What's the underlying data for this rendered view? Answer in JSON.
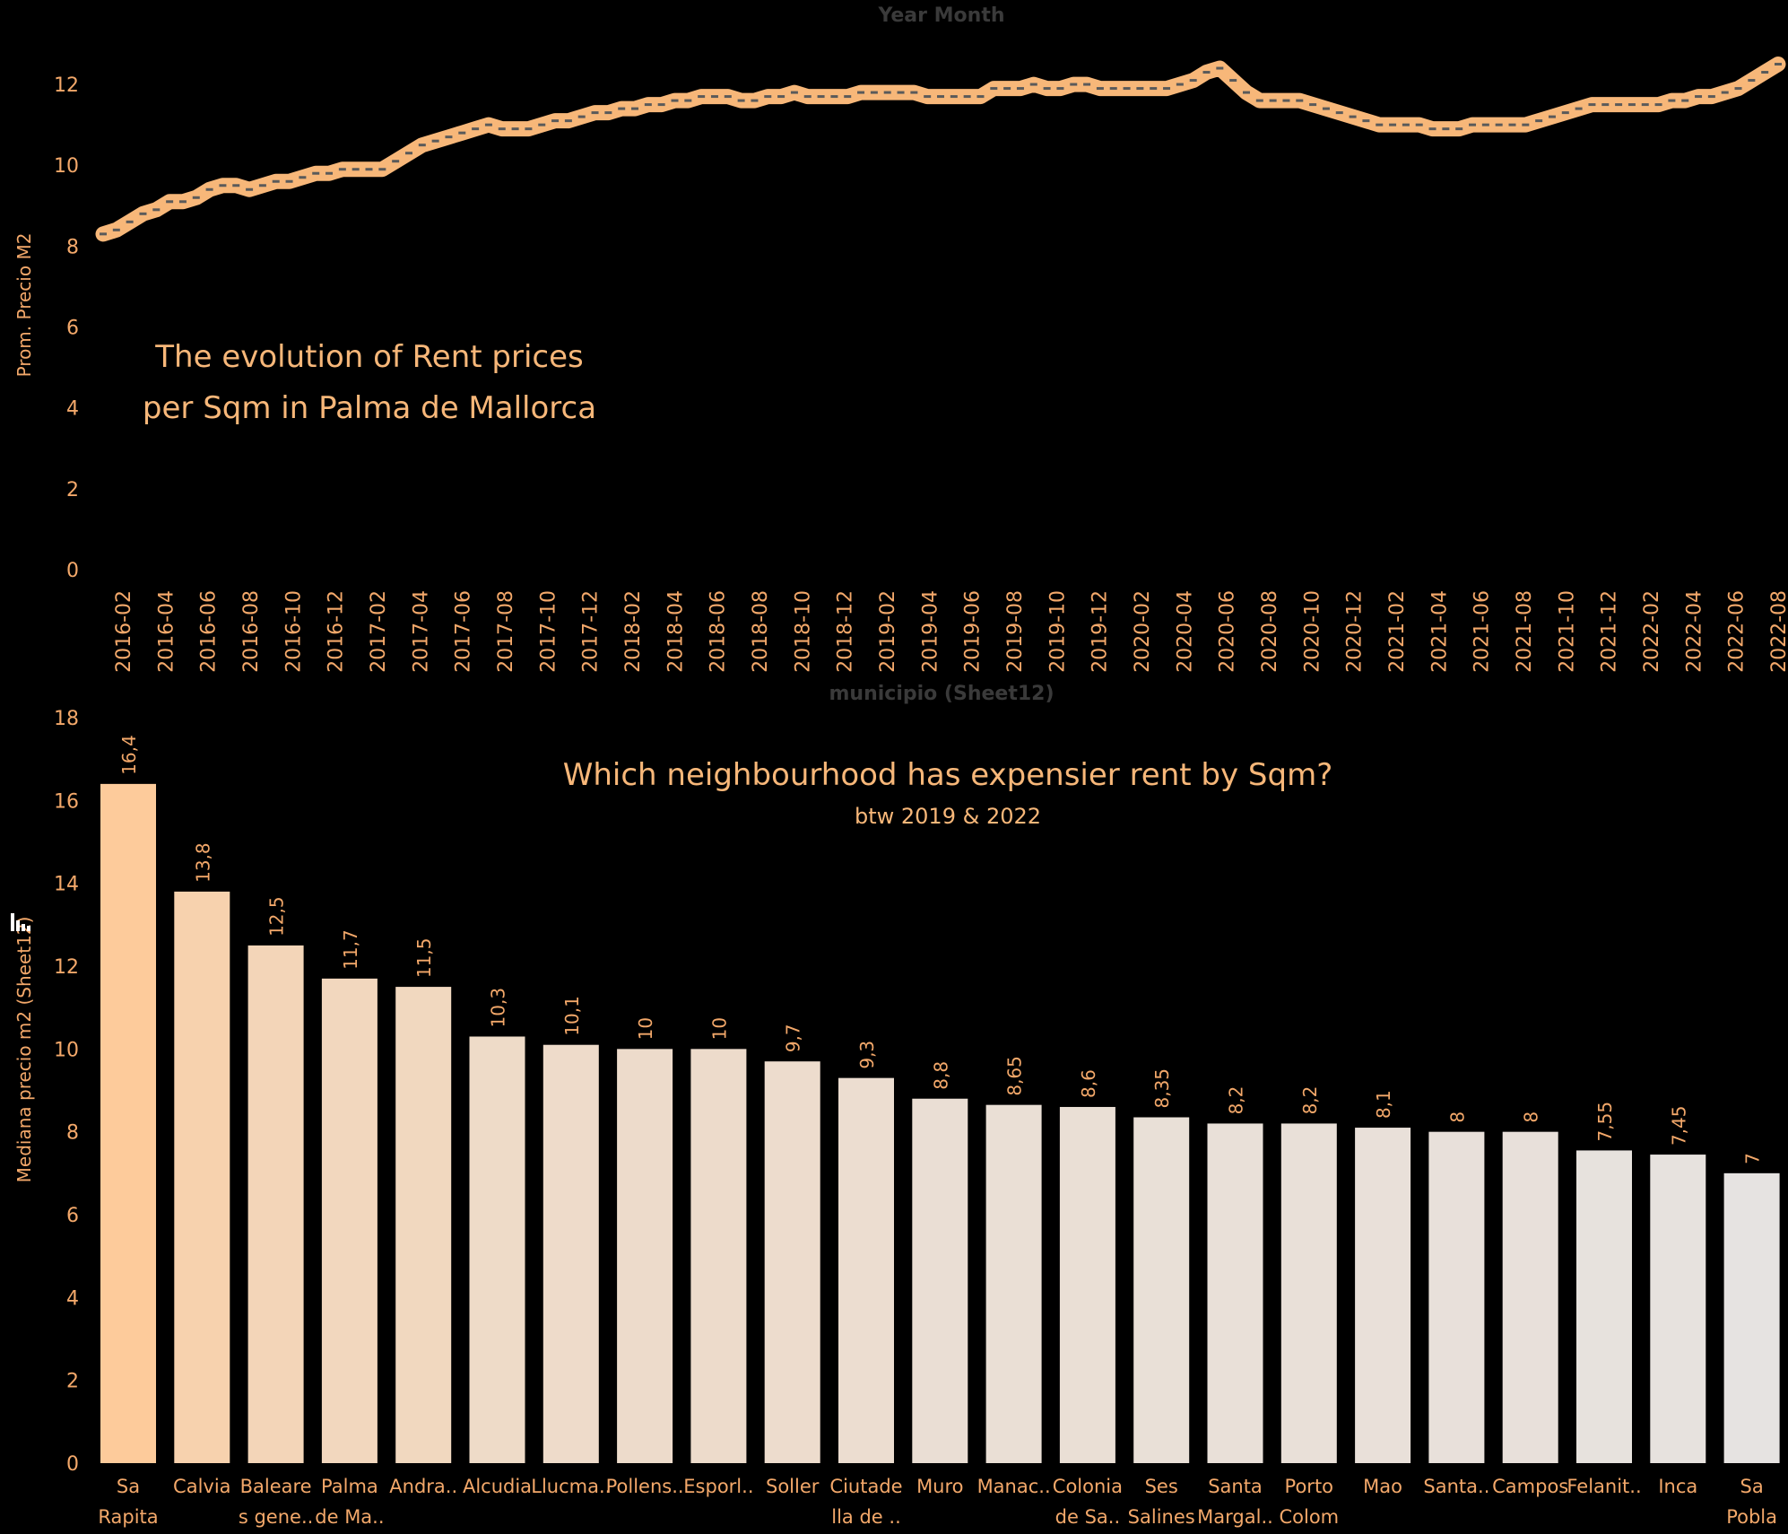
{
  "chart_data": [
    {
      "type": "line",
      "title": "The evolution of Rent prices",
      "subtitle": "per Sqm in Palma de Mallorca",
      "xlabel": "Year Month",
      "ylabel": "Prom. Precio M2",
      "ylim": [
        0,
        12.8
      ],
      "yticks": [
        0,
        2,
        4,
        6,
        8,
        10,
        12
      ],
      "grid": false,
      "line_color": "#f7b779",
      "x_tick_labels": [
        "2016-02",
        "2016-04",
        "2016-06",
        "2016-08",
        "2016-10",
        "2016-12",
        "2017-02",
        "2017-04",
        "2017-06",
        "2017-08",
        "2017-10",
        "2017-12",
        "2018-02",
        "2018-04",
        "2018-06",
        "2018-08",
        "2018-10",
        "2018-12",
        "2019-02",
        "2019-04",
        "2019-06",
        "2019-08",
        "2019-10",
        "2019-12",
        "2020-02",
        "2020-04",
        "2020-06",
        "2020-08",
        "2020-10",
        "2020-12",
        "2021-02",
        "2021-04",
        "2021-06",
        "2021-08",
        "2021-10",
        "2021-12",
        "2022-02",
        "2022-04",
        "2022-06",
        "2022-08"
      ],
      "series": [
        {
          "values": [
            8.3,
            8.4,
            8.6,
            8.8,
            8.9,
            9.1,
            9.1,
            9.2,
            9.4,
            9.5,
            9.5,
            9.4,
            9.5,
            9.6,
            9.6,
            9.7,
            9.8,
            9.8,
            9.9,
            9.9,
            9.9,
            9.9,
            10.1,
            10.3,
            10.5,
            10.6,
            10.7,
            10.8,
            10.9,
            11.0,
            10.9,
            10.9,
            10.9,
            11.0,
            11.1,
            11.1,
            11.2,
            11.3,
            11.3,
            11.4,
            11.4,
            11.5,
            11.5,
            11.6,
            11.6,
            11.7,
            11.7,
            11.7,
            11.6,
            11.6,
            11.7,
            11.7,
            11.8,
            11.7,
            11.7,
            11.7,
            11.7,
            11.8,
            11.8,
            11.8,
            11.8,
            11.8,
            11.7,
            11.7,
            11.7,
            11.7,
            11.7,
            11.9,
            11.9,
            11.9,
            12.0,
            11.9,
            11.9,
            12.0,
            12.0,
            11.9,
            11.9,
            11.9,
            11.9,
            11.9,
            11.9,
            12.0,
            12.1,
            12.3,
            12.4,
            12.1,
            11.8,
            11.6,
            11.6,
            11.6,
            11.6,
            11.5,
            11.4,
            11.3,
            11.2,
            11.1,
            11.0,
            11.0,
            11.0,
            11.0,
            10.9,
            10.9,
            10.9,
            11.0,
            11.0,
            11.0,
            11.0,
            11.0,
            11.1,
            11.2,
            11.3,
            11.4,
            11.5,
            11.5,
            11.5,
            11.5,
            11.5,
            11.5,
            11.6,
            11.6,
            11.7,
            11.7,
            11.8,
            11.9,
            12.1,
            12.3,
            12.5
          ]
        }
      ]
    },
    {
      "type": "bar",
      "title": "Which neighbourhood has expensier rent by Sqm?",
      "subtitle": "btw 2019 & 2022",
      "xlabel": "municipio (Sheet12)",
      "ylabel": "Mediana precio m2 (Sheet12)",
      "ylim": [
        0,
        18
      ],
      "yticks": [
        0,
        2,
        4,
        6,
        8,
        10,
        12,
        14,
        16,
        18
      ],
      "grid": false,
      "color_high": "#fdcb9b",
      "color_low": "#e6e3e1",
      "categories": [
        [
          "Sa",
          "Rapita"
        ],
        [
          "Calvia"
        ],
        [
          "Baleare",
          "s gene.."
        ],
        [
          "Palma",
          "de Ma.."
        ],
        [
          "Andra.."
        ],
        [
          "Alcudia"
        ],
        [
          "Llucma.."
        ],
        [
          "Pollens.."
        ],
        [
          "Esporl.."
        ],
        [
          "Soller"
        ],
        [
          "Ciutade",
          "lla de .."
        ],
        [
          "Muro"
        ],
        [
          "Manac.."
        ],
        [
          "Colonia",
          "de Sa.."
        ],
        [
          "Ses",
          "Salines"
        ],
        [
          "Santa",
          "Margal.."
        ],
        [
          "Porto",
          "Colom"
        ],
        [
          "Mao"
        ],
        [
          "Santa.."
        ],
        [
          "Campos"
        ],
        [
          "Felanit.."
        ],
        [
          "Inca"
        ],
        [
          "Sa",
          "Pobla"
        ]
      ],
      "values": [
        16.4,
        13.8,
        12.5,
        11.7,
        11.5,
        10.3,
        10.1,
        10,
        10,
        9.7,
        9.3,
        8.8,
        8.65,
        8.6,
        8.35,
        8.2,
        8.2,
        8.1,
        8,
        8,
        7.55,
        7.45,
        7
      ],
      "value_labels": [
        "16,4",
        "13,8",
        "12,5",
        "11,7",
        "11,5",
        "10,3",
        "10,1",
        "10",
        "10",
        "9,7",
        "9,3",
        "8,8",
        "8,65",
        "8,6",
        "8,35",
        "8,2",
        "8,2",
        "8,1",
        "8",
        "8",
        "7,55",
        "7,45",
        "7"
      ]
    }
  ]
}
